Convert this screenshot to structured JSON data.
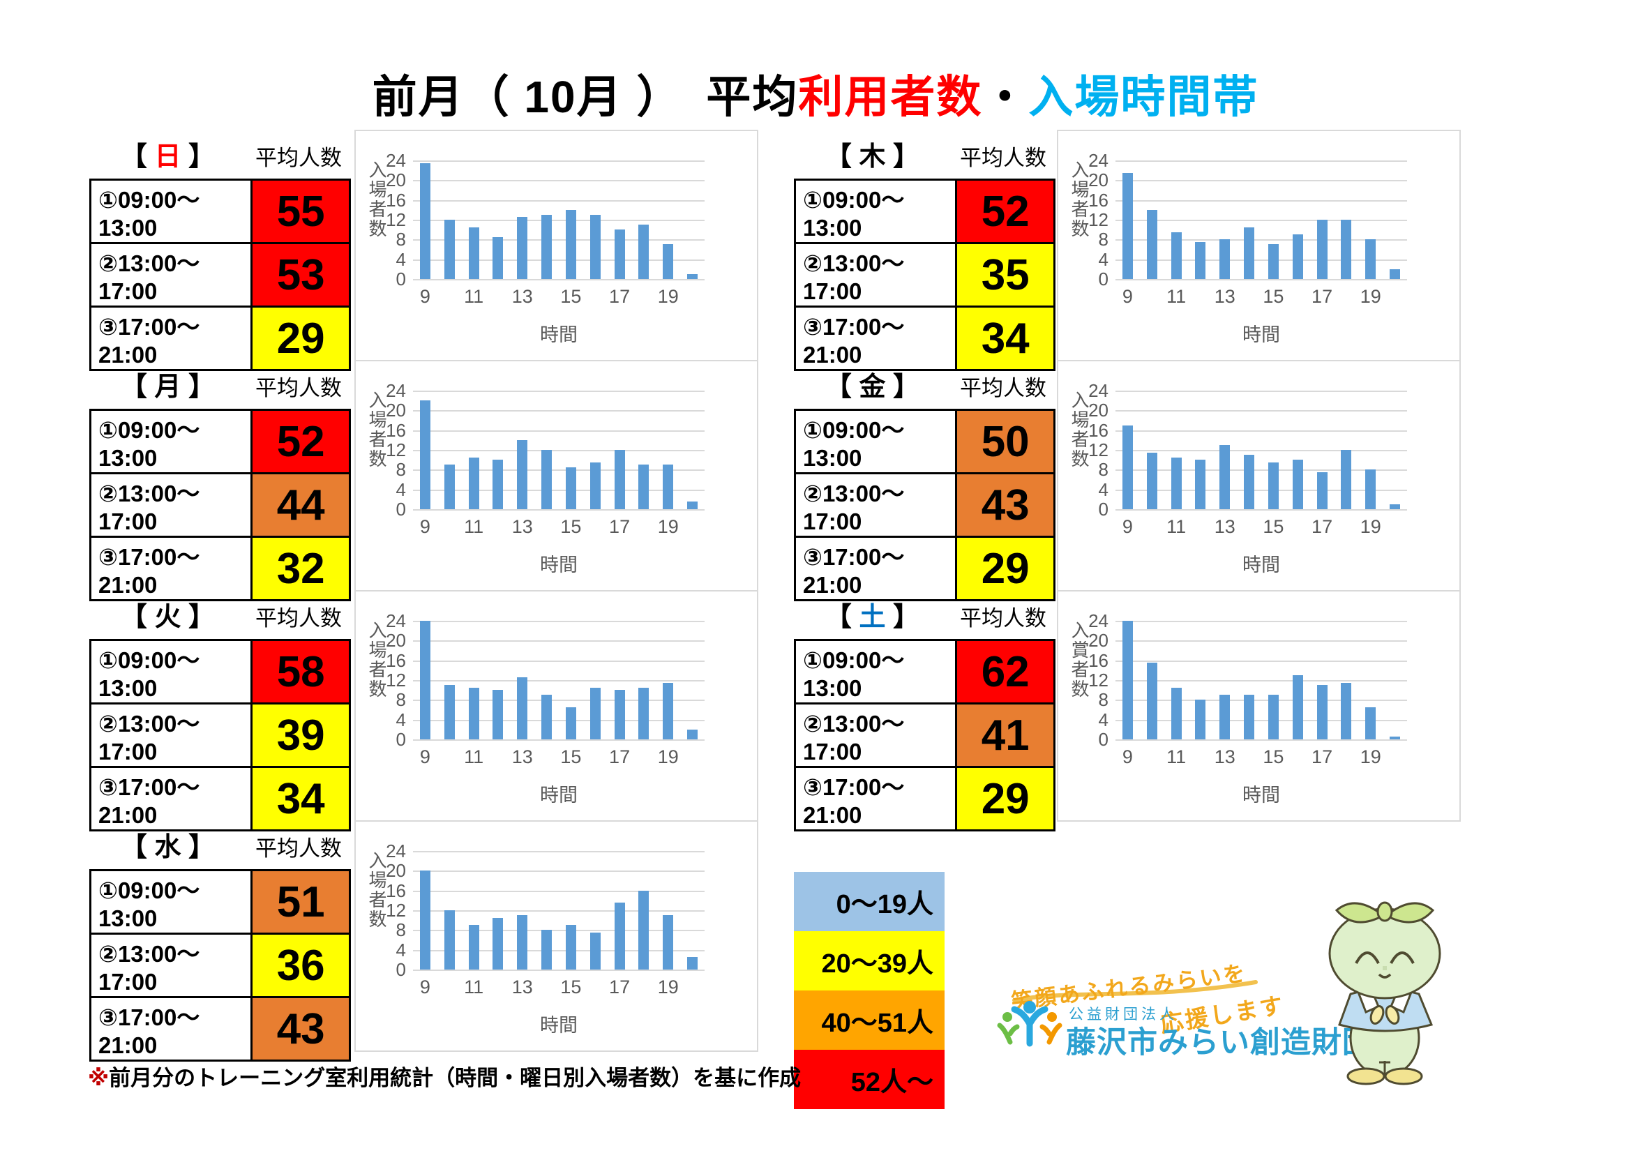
{
  "title": {
    "black1": "前月（ 10月 ）　平均",
    "red": "利用者数",
    "dot": "・",
    "cyan": "入場時間帯",
    "red_color": "#FF0000",
    "cyan_color": "#00B0F0"
  },
  "avg_label": "平均人数",
  "time_slots": [
    "①09:00～13:00",
    "②13:00～17:00",
    "③17:00～21:00"
  ],
  "level_colors": {
    "red": "#FF0000",
    "orange": "#E87E31",
    "yellow": "#FFFF00"
  },
  "days": [
    {
      "key": "sunday",
      "char": "日",
      "char_color": "#FF0000",
      "rows": [
        {
          "value": "55",
          "level": "red"
        },
        {
          "value": "53",
          "level": "red"
        },
        {
          "value": "29",
          "level": "yellow"
        }
      ]
    },
    {
      "key": "monday",
      "char": "月",
      "char_color": "#000000",
      "rows": [
        {
          "value": "52",
          "level": "red"
        },
        {
          "value": "44",
          "level": "orange"
        },
        {
          "value": "32",
          "level": "yellow"
        }
      ]
    },
    {
      "key": "tuesday",
      "char": "火",
      "char_color": "#000000",
      "rows": [
        {
          "value": "58",
          "level": "red"
        },
        {
          "value": "39",
          "level": "yellow"
        },
        {
          "value": "34",
          "level": "yellow"
        }
      ]
    },
    {
      "key": "wednesday",
      "char": "水",
      "char_color": "#000000",
      "rows": [
        {
          "value": "51",
          "level": "orange"
        },
        {
          "value": "36",
          "level": "yellow"
        },
        {
          "value": "43",
          "level": "orange"
        }
      ]
    },
    {
      "key": "thursday",
      "char": "木",
      "char_color": "#000000",
      "rows": [
        {
          "value": "52",
          "level": "red"
        },
        {
          "value": "35",
          "level": "yellow"
        },
        {
          "value": "34",
          "level": "yellow"
        }
      ]
    },
    {
      "key": "friday",
      "char": "金",
      "char_color": "#000000",
      "rows": [
        {
          "value": "50",
          "level": "orange"
        },
        {
          "value": "43",
          "level": "orange"
        },
        {
          "value": "29",
          "level": "yellow"
        }
      ]
    },
    {
      "key": "saturday",
      "char": "土",
      "char_color": "#0070C0",
      "rows": [
        {
          "value": "62",
          "level": "red"
        },
        {
          "value": "41",
          "level": "orange"
        },
        {
          "value": "29",
          "level": "yellow"
        }
      ]
    }
  ],
  "chart_data": [
    {
      "type": "bar",
      "day": "日",
      "x": [
        9,
        10,
        11,
        12,
        13,
        14,
        15,
        16,
        17,
        18,
        19,
        20
      ],
      "values": [
        23.5,
        12,
        10.5,
        8.5,
        12.5,
        13,
        14,
        13,
        10,
        11,
        7,
        1
      ],
      "ylabel": "入場者数",
      "xlabel": "時間",
      "ylim": [
        0,
        24
      ],
      "yticks": [
        0,
        4,
        8,
        12,
        16,
        20,
        24
      ],
      "xticks": [
        9,
        11,
        13,
        15,
        17,
        19
      ],
      "bar_color": "#5B9BD5",
      "grid": true
    },
    {
      "type": "bar",
      "day": "月",
      "x": [
        9,
        10,
        11,
        12,
        13,
        14,
        15,
        16,
        17,
        18,
        19,
        20
      ],
      "values": [
        22,
        9,
        10.5,
        10,
        14,
        12,
        8.5,
        9.5,
        12,
        9,
        9,
        1.5
      ],
      "ylabel": "入場者数",
      "xlabel": "時間",
      "ylim": [
        0,
        24
      ],
      "yticks": [
        0,
        4,
        8,
        12,
        16,
        20,
        24
      ],
      "xticks": [
        9,
        11,
        13,
        15,
        17,
        19
      ],
      "bar_color": "#5B9BD5",
      "grid": true
    },
    {
      "type": "bar",
      "day": "火",
      "x": [
        9,
        10,
        11,
        12,
        13,
        14,
        15,
        16,
        17,
        18,
        19,
        20
      ],
      "values": [
        24,
        11,
        10.5,
        10,
        12.5,
        9,
        6.5,
        10.5,
        10,
        10.5,
        11.5,
        2
      ],
      "ylabel": "入場者数",
      "xlabel": "時間",
      "ylim": [
        0,
        24
      ],
      "yticks": [
        0,
        4,
        8,
        12,
        16,
        20,
        24
      ],
      "xticks": [
        9,
        11,
        13,
        15,
        17,
        19
      ],
      "bar_color": "#5B9BD5",
      "grid": true
    },
    {
      "type": "bar",
      "day": "水",
      "x": [
        9,
        10,
        11,
        12,
        13,
        14,
        15,
        16,
        17,
        18,
        19,
        20
      ],
      "values": [
        20,
        12,
        9,
        10.5,
        11,
        8,
        9,
        7.5,
        13.5,
        16,
        11,
        2.5
      ],
      "ylabel": "入場者数",
      "xlabel": "時間",
      "ylim": [
        0,
        24
      ],
      "yticks": [
        0,
        4,
        8,
        12,
        16,
        20,
        24
      ],
      "xticks": [
        9,
        11,
        13,
        15,
        17,
        19
      ],
      "bar_color": "#5B9BD5",
      "grid": true
    },
    {
      "type": "bar",
      "day": "木",
      "x": [
        9,
        10,
        11,
        12,
        13,
        14,
        15,
        16,
        17,
        18,
        19,
        20
      ],
      "values": [
        21.5,
        14,
        9.5,
        7.5,
        8,
        10.5,
        7,
        9,
        12,
        12,
        8,
        2
      ],
      "ylabel": "入場者数",
      "xlabel": "時間",
      "ylim": [
        0,
        24
      ],
      "yticks": [
        0,
        4,
        8,
        12,
        16,
        20,
        24
      ],
      "xticks": [
        9,
        11,
        13,
        15,
        17,
        19
      ],
      "bar_color": "#5B9BD5",
      "grid": true
    },
    {
      "type": "bar",
      "day": "金",
      "x": [
        9,
        10,
        11,
        12,
        13,
        14,
        15,
        16,
        17,
        18,
        19,
        20
      ],
      "values": [
        17,
        11.5,
        10.5,
        10,
        13,
        11,
        9.5,
        10,
        7.5,
        12,
        8,
        1
      ],
      "ylabel": "入場者数",
      "xlabel": "時間",
      "ylim": [
        0,
        24
      ],
      "yticks": [
        0,
        4,
        8,
        12,
        16,
        20,
        24
      ],
      "xticks": [
        9,
        11,
        13,
        15,
        17,
        19
      ],
      "bar_color": "#5B9BD5",
      "grid": true
    },
    {
      "type": "bar",
      "day": "土",
      "x": [
        9,
        10,
        11,
        12,
        13,
        14,
        15,
        16,
        17,
        18,
        19,
        20
      ],
      "values": [
        24,
        15.5,
        10.5,
        8,
        9,
        9,
        9,
        13,
        11,
        11.5,
        6.5,
        0.5
      ],
      "ylabel": "入賞者数",
      "xlabel": "時間",
      "ylim": [
        0,
        24
      ],
      "yticks": [
        0,
        4,
        8,
        12,
        16,
        20,
        24
      ],
      "xticks": [
        9,
        11,
        13,
        15,
        17,
        19
      ],
      "bar_color": "#5B9BD5",
      "grid": true
    }
  ],
  "legend": {
    "items": [
      {
        "label": "0～19人",
        "color": "#9DC3E6"
      },
      {
        "label": "20～39人",
        "color": "#FFFF00"
      },
      {
        "label": "40～51人",
        "color": "#FFA500"
      },
      {
        "label": "52人～",
        "color": "#FF0000"
      }
    ]
  },
  "footnote": {
    "mark": "※",
    "text": "前月分のトレーニング室利用統計（時間・曜日別入場者数）を基に作成"
  },
  "logo": {
    "slogan_line1": "笑顔あふれるみらいを",
    "slogan_line2": "応援します",
    "org_type": "公益財団法人",
    "org_name": "藤沢市みらい創造財団"
  }
}
